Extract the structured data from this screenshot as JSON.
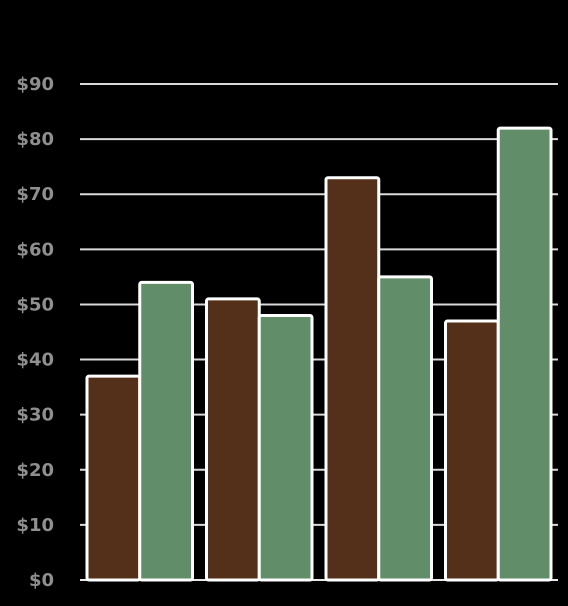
{
  "chart_data": {
    "type": "bar",
    "title": "",
    "xlabel": "",
    "ylabel": "",
    "categories": [
      "",
      "",
      "",
      ""
    ],
    "ylim": [
      0,
      90
    ],
    "yticks": [
      0,
      10,
      20,
      30,
      40,
      50,
      60,
      70,
      80,
      90
    ],
    "ytick_labels": [
      "$0",
      "$10",
      "$20",
      "$30",
      "$40",
      "$50",
      "$60",
      "$70",
      "$80",
      "$90"
    ],
    "grid": true,
    "series": [
      {
        "values": [
          37,
          51,
          73,
          47
        ],
        "color": "#54301a"
      },
      {
        "values": [
          54,
          48,
          55,
          82
        ],
        "color": "#628d69"
      }
    ]
  }
}
